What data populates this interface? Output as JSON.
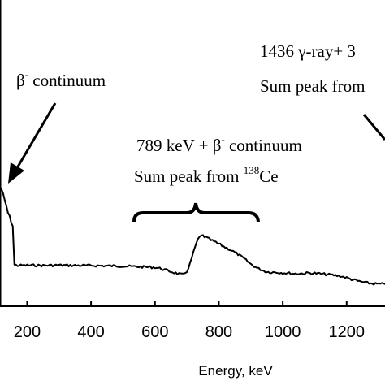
{
  "chart_data": {
    "type": "line",
    "xlabel": "Energy, keV",
    "ylabel": "",
    "xlim": [
      115,
      1320
    ],
    "ylim": [
      0,
      100
    ],
    "x_ticks": [
      200,
      400,
      600,
      800,
      1000,
      1200
    ],
    "x_tick_labels": [
      "200",
      "400",
      "600",
      "800",
      "1000",
      "1200"
    ],
    "grid": false,
    "series": [
      {
        "x": [
          115,
          120,
          125,
          130,
          135,
          140,
          145,
          150,
          155,
          160,
          170,
          180,
          200,
          250,
          300,
          350,
          400,
          450,
          500,
          550,
          600,
          620,
          640,
          660,
          680,
          690,
          700,
          710,
          720,
          730,
          740,
          750,
          760,
          780,
          800,
          820,
          840,
          860,
          880,
          900,
          920,
          940,
          950,
          960,
          980,
          1000,
          1020,
          1040,
          1060,
          1080,
          1100,
          1120,
          1140,
          1160,
          1180,
          1200,
          1220,
          1240,
          1260,
          1280,
          1300,
          1320
        ],
        "y": [
          75,
          73,
          69,
          64,
          60,
          55,
          52,
          48,
          45,
          15,
          14.5,
          14.5,
          14.6,
          14.5,
          14.7,
          14.5,
          14.4,
          14.2,
          14.0,
          13.5,
          13.0,
          12.0,
          10.5,
          9.0,
          7.6,
          7.5,
          10,
          16,
          24,
          32,
          36.5,
          37.5,
          36,
          33.5,
          31,
          28.5,
          26,
          23,
          19.5,
          15.5,
          12.5,
          10.5,
          9.6,
          9.4,
          9.2,
          8.8,
          8.5,
          8.2,
          8.3,
          8.7,
          8.5,
          8.0,
          7.5,
          7.0,
          6.3,
          5.0,
          3.5,
          2.2,
          1.2,
          0.5,
          0.2,
          0.0
        ]
      }
    ],
    "annotations": [
      {
        "text": "β",
        "sup": "-",
        "text2": " continuum"
      },
      {
        "line1_text": "789 keV + β",
        "line1_sup": "-",
        "line1_text2": " continuum",
        "line2_text": "Sum peak from ",
        "line2_sup": "138",
        "line2_text2": "Ce"
      },
      {
        "line1_text": "1436 γ-ray+ 3",
        "line2_text": "Sum peak from"
      }
    ]
  }
}
